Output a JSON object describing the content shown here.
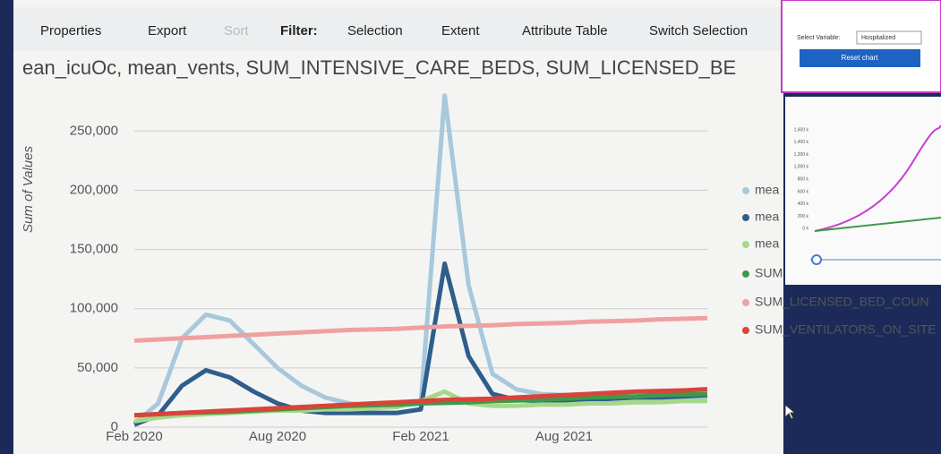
{
  "toolbar": {
    "items": [
      "Properties",
      "Export",
      "Sort",
      "Filter:",
      "Selection",
      "Extent",
      "Attribute Table",
      "Switch Selection"
    ]
  },
  "chart_data": {
    "type": "line",
    "title": "ean_icuOc, mean_vents, SUM_INTENSIVE_CARE_BEDS, SUM_LICENSED_BE",
    "y_label": "Sum of Values",
    "categories": [
      "Feb 2020",
      null,
      null,
      null,
      null,
      null,
      "Aug 2020",
      null,
      null,
      null,
      null,
      null,
      "Feb 2021",
      null,
      null,
      null,
      null,
      null,
      "Aug 2021",
      null,
      null,
      null,
      null,
      null,
      null
    ],
    "ylim": [
      0,
      285000
    ],
    "yticks": [
      0,
      {
        "value": 50000,
        "label": "50,000"
      },
      {
        "value": 100000,
        "label": "100,000"
      },
      {
        "value": 150000,
        "label": "150,000"
      },
      {
        "value": 200000,
        "label": "200,000"
      },
      {
        "value": 250000,
        "label": "250,000"
      }
    ],
    "grid": true,
    "series": [
      {
        "name": "mea",
        "color": "#a8c8dc",
        "values": [
          3000,
          20000,
          75000,
          95000,
          90000,
          70000,
          50000,
          35000,
          25000,
          20000,
          18000,
          18000,
          20000,
          280000,
          120000,
          45000,
          32000,
          28000,
          27000,
          26000,
          25000,
          25000,
          25000,
          25000,
          25000
        ]
      },
      {
        "name": "mea",
        "color": "#2f5d8c",
        "values": [
          2000,
          10000,
          35000,
          48000,
          42000,
          30000,
          20000,
          14000,
          12000,
          12000,
          12000,
          12000,
          15000,
          138000,
          60000,
          28000,
          23000,
          22000,
          22000,
          23000,
          24000,
          25000,
          25000,
          26000,
          27000
        ]
      },
      {
        "name": "mea",
        "color": "#a6d88a",
        "values": [
          5000,
          8000,
          10000,
          11000,
          12000,
          13000,
          14000,
          14000,
          15000,
          15000,
          16000,
          17000,
          22000,
          30000,
          20000,
          18000,
          18000,
          19000,
          19000,
          20000,
          20000,
          21000,
          21000,
          22000,
          22000
        ]
      },
      {
        "name": "SUM",
        "color": "#3c9a4a",
        "values": [
          10000,
          11000,
          12000,
          12500,
          13000,
          14000,
          15000,
          16000,
          17000,
          18000,
          18500,
          19000,
          20000,
          20500,
          21000,
          22000,
          22500,
          23000,
          24000,
          25000,
          25500,
          26000,
          27000,
          27500,
          28000
        ]
      },
      {
        "name": "SUM_LICENSED_BED_COUN",
        "color": "#f0a0a0",
        "values": [
          73000,
          74000,
          75000,
          76000,
          77000,
          78000,
          79000,
          80000,
          81000,
          82000,
          82500,
          83000,
          84000,
          85000,
          85500,
          86000,
          87000,
          87500,
          88000,
          89000,
          89500,
          90000,
          91000,
          91500,
          92000
        ]
      },
      {
        "name": "SUM_VENTILATORS_ON_SITE",
        "color": "#d9443a",
        "values": [
          10000,
          11000,
          12000,
          13000,
          14000,
          15000,
          16000,
          17000,
          18000,
          19000,
          20000,
          21000,
          22000,
          23000,
          23500,
          24000,
          25000,
          26000,
          27000,
          28000,
          29000,
          30000,
          30500,
          31000,
          32000
        ]
      }
    ]
  },
  "inset": {
    "select_label": "Select Variable:",
    "select_value": "Hospitalized",
    "button": "Reset chart",
    "yticks": [
      "1,600 k",
      "1,400 k",
      "1,200 k",
      "1,000 k",
      "800 k",
      "600 k",
      "400 k",
      "200 k",
      "0 k"
    ]
  }
}
